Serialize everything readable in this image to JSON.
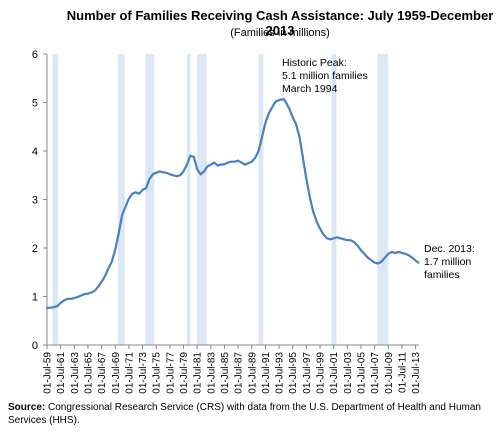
{
  "title": "Number of Families Receiving Cash Assistance: July 1959-December 2013",
  "subtitle": "(Families in millions)",
  "annotations": {
    "peak": [
      "Historic Peak:",
      "5.1 million families",
      "March 1994"
    ],
    "dec": [
      "Dec. 2013:",
      "1.7 million",
      "families"
    ]
  },
  "source_label": "Source:",
  "source_text": "Congressional Research Service (CRS) with data from the U.S. Department of Health and Human Services (HHS).",
  "colors": {
    "line": "#4a7fc1",
    "recession": "#dbe7f5",
    "axis": "#888888"
  },
  "chart_data": {
    "type": "line",
    "ylim": [
      0,
      6
    ],
    "yticks": [
      0,
      1,
      2,
      3,
      4,
      5,
      6
    ],
    "xlim": [
      1959.5,
      2014.0
    ],
    "xtick_labels": [
      "01-Jul-59",
      "01-Jul-61",
      "01-Jul-63",
      "01-Jul-65",
      "01-Jul-67",
      "01-Jul-69",
      "01-Jul-71",
      "01-Jul-73",
      "01-Jul-75",
      "01-Jul-77",
      "01-Jul-79",
      "01-Jul-81",
      "01-Jul-83",
      "01-Jul-85",
      "01-Jul-87",
      "01-Jul-89",
      "01-Jul-91",
      "01-Jul-93",
      "01-Jul-95",
      "01-Jul-97",
      "01-Jul-99",
      "01-Jul-01",
      "01-Jul-03",
      "01-Jul-05",
      "01-Jul-07",
      "01-Jul-09",
      "01-Jul-11",
      "01-Jul-13"
    ],
    "recessions": [
      [
        1960.3,
        1961.1
      ],
      [
        1969.9,
        1970.9
      ],
      [
        1973.9,
        1975.2
      ],
      [
        1980.0,
        1980.5
      ],
      [
        1981.5,
        1982.9
      ],
      [
        1990.5,
        1991.2
      ],
      [
        2001.2,
        2001.9
      ],
      [
        2007.9,
        2009.5
      ]
    ],
    "series": [
      {
        "x": [
          1959.5,
          1960.0,
          1960.5,
          1961.0,
          1961.5,
          1962.0,
          1962.5,
          1963.0,
          1963.5,
          1964.0,
          1964.5,
          1965.0,
          1965.5,
          1966.0,
          1966.5,
          1967.0,
          1967.5,
          1968.0,
          1968.5,
          1969.0,
          1969.5,
          1970.0,
          1970.5,
          1971.0,
          1971.5,
          1972.0,
          1972.5,
          1973.0,
          1973.5,
          1974.0,
          1974.5,
          1975.0,
          1975.5,
          1976.0,
          1976.5,
          1977.0,
          1977.5,
          1978.0,
          1978.5,
          1979.0,
          1979.5,
          1980.0,
          1980.5,
          1981.0,
          1981.5,
          1982.0,
          1982.5,
          1983.0,
          1983.5,
          1984.0,
          1984.5,
          1985.0,
          1985.5,
          1986.0,
          1986.5,
          1987.0,
          1987.5,
          1988.0,
          1988.5,
          1989.0,
          1989.5,
          1990.0,
          1990.5,
          1991.0,
          1991.5,
          1992.0,
          1992.5,
          1993.0,
          1993.5,
          1994.2,
          1994.6,
          1995.0,
          1995.5,
          1996.0,
          1996.5,
          1997.0,
          1997.5,
          1998.0,
          1998.5,
          1999.0,
          1999.5,
          2000.0,
          2000.5,
          2001.0,
          2001.5,
          2002.0,
          2002.5,
          2003.0,
          2003.5,
          2004.0,
          2004.5,
          2005.0,
          2005.5,
          2006.0,
          2006.5,
          2007.0,
          2007.5,
          2008.0,
          2008.5,
          2009.0,
          2009.5,
          2010.0,
          2010.5,
          2011.0,
          2011.5,
          2012.0,
          2012.5,
          2013.0,
          2013.5,
          2013.9
        ],
        "y": [
          0.76,
          0.77,
          0.78,
          0.8,
          0.87,
          0.92,
          0.95,
          0.95,
          0.97,
          0.99,
          1.02,
          1.05,
          1.06,
          1.08,
          1.12,
          1.2,
          1.3,
          1.42,
          1.58,
          1.72,
          1.97,
          2.3,
          2.68,
          2.85,
          3.02,
          3.12,
          3.15,
          3.12,
          3.2,
          3.23,
          3.42,
          3.52,
          3.55,
          3.58,
          3.56,
          3.55,
          3.52,
          3.5,
          3.48,
          3.5,
          3.58,
          3.72,
          3.9,
          3.88,
          3.62,
          3.52,
          3.58,
          3.68,
          3.72,
          3.76,
          3.7,
          3.72,
          3.73,
          3.76,
          3.78,
          3.78,
          3.8,
          3.76,
          3.72,
          3.75,
          3.78,
          3.86,
          4.0,
          4.28,
          4.58,
          4.78,
          4.9,
          5.02,
          5.05,
          5.07,
          4.98,
          4.87,
          4.7,
          4.55,
          4.28,
          3.85,
          3.42,
          3.05,
          2.75,
          2.55,
          2.4,
          2.28,
          2.2,
          2.18,
          2.2,
          2.22,
          2.2,
          2.18,
          2.16,
          2.16,
          2.12,
          2.05,
          1.95,
          1.88,
          1.8,
          1.75,
          1.7,
          1.68,
          1.72,
          1.8,
          1.88,
          1.92,
          1.9,
          1.92,
          1.9,
          1.88,
          1.85,
          1.8,
          1.74,
          1.7
        ]
      }
    ]
  }
}
